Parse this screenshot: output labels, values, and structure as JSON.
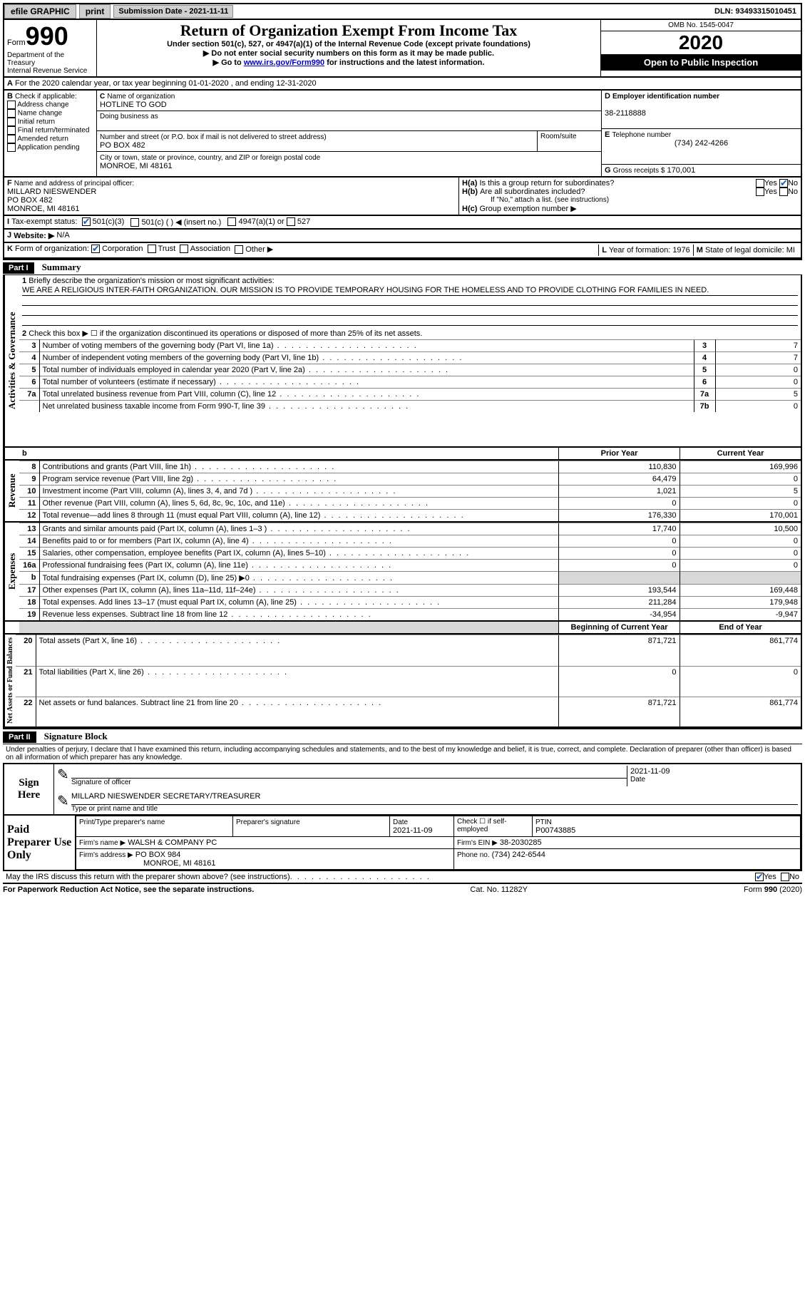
{
  "topbar": {
    "efile": "efile GRAPHIC",
    "print": "print",
    "submission_label": "Submission Date - 2021-11-11",
    "dln": "DLN: 93493315010451"
  },
  "header": {
    "form_prefix": "Form",
    "form_no": "990",
    "dept1": "Department of the Treasury",
    "dept2": "Internal Revenue Service",
    "title": "Return of Organization Exempt From Income Tax",
    "sub1": "Under section 501(c), 527, or 4947(a)(1) of the Internal Revenue Code (except private foundations)",
    "sub2": "▶ Do not enter social security numbers on this form as it may be made public.",
    "sub3_pre": "▶ Go to ",
    "sub3_link": "www.irs.gov/Form990",
    "sub3_post": " for instructions and the latest information.",
    "omb": "OMB No. 1545-0047",
    "year": "2020",
    "open": "Open to Public Inspection"
  },
  "A": {
    "text": "For the 2020 calendar year, or tax year beginning 01-01-2020    , and ending 12-31-2020"
  },
  "B": {
    "label": "Check if applicable:",
    "opts": [
      "Address change",
      "Name change",
      "Initial return",
      "Final return/terminated",
      "Amended return",
      "Application pending"
    ]
  },
  "C": {
    "name_lbl": "Name of organization",
    "name": "HOTLINE TO GOD",
    "dba_lbl": "Doing business as",
    "addr_lbl": "Number and street (or P.O. box if mail is not delivered to street address)",
    "room_lbl": "Room/suite",
    "addr": "PO BOX 482",
    "city_lbl": "City or town, state or province, country, and ZIP or foreign postal code",
    "city": "MONROE, MI  48161"
  },
  "D": {
    "lbl": "Employer identification number",
    "val": "38-2118888"
  },
  "E": {
    "lbl": "Telephone number",
    "val": "(734) 242-4266"
  },
  "G": {
    "lbl": "Gross receipts $",
    "val": "170,001"
  },
  "F": {
    "lbl": "Name and address of principal officer:",
    "name": "MILLARD NIESWENDER",
    "addr1": "PO BOX 482",
    "addr2": "MONROE, MI  48161"
  },
  "H": {
    "a": "Is this a group return for subordinates?",
    "b": "Are all subordinates included?",
    "b_note": "If \"No,\" attach a list. (see instructions)",
    "c": "Group exemption number ▶"
  },
  "I": {
    "lbl": "Tax-exempt status:",
    "opts": [
      "501(c)(3)",
      "501(c) (  ) ◀ (insert no.)",
      "4947(a)(1) or",
      "527"
    ]
  },
  "J": {
    "lbl": "Website: ▶",
    "val": "N/A"
  },
  "K": {
    "lbl": "Form of organization:",
    "opts": [
      "Corporation",
      "Trust",
      "Association",
      "Other ▶"
    ]
  },
  "L": {
    "lbl": "Year of formation:",
    "val": "1976"
  },
  "M": {
    "lbl": "State of legal domicile:",
    "val": "MI"
  },
  "part1": {
    "hdr": "Part I",
    "title": "Summary",
    "line1_lbl": "Briefly describe the organization's mission or most significant activities:",
    "mission": "WE ARE A RELIGIOUS INTER-FAITH ORGANIZATION. OUR MISSION IS TO PROVIDE TEMPORARY HOUSING FOR THE HOMELESS AND TO PROVIDE CLOTHING FOR FAMILIES IN NEED.",
    "line2": "Check this box ▶ ☐ if the organization discontinued its operations or disposed of more than 25% of its net assets.",
    "activities_tab": "Activities & Governance",
    "revenue_tab": "Revenue",
    "expenses_tab": "Expenses",
    "netassets_tab": "Net Assets or Fund Balances",
    "rows_ag": [
      {
        "n": "3",
        "t": "Number of voting members of the governing body (Part VI, line 1a)",
        "box": "3",
        "v": "7"
      },
      {
        "n": "4",
        "t": "Number of independent voting members of the governing body (Part VI, line 1b)",
        "box": "4",
        "v": "7"
      },
      {
        "n": "5",
        "t": "Total number of individuals employed in calendar year 2020 (Part V, line 2a)",
        "box": "5",
        "v": "0"
      },
      {
        "n": "6",
        "t": "Total number of volunteers (estimate if necessary)",
        "box": "6",
        "v": "0"
      },
      {
        "n": "7a",
        "t": "Total unrelated business revenue from Part VIII, column (C), line 12",
        "box": "7a",
        "v": "5"
      },
      {
        "n": "",
        "t": "Net unrelated business taxable income from Form 990-T, line 39",
        "box": "7b",
        "v": "0"
      }
    ],
    "py_hdr": "Prior Year",
    "cy_hdr": "Current Year",
    "rows_rev": [
      {
        "n": "8",
        "t": "Contributions and grants (Part VIII, line 1h)",
        "py": "110,830",
        "cy": "169,996"
      },
      {
        "n": "9",
        "t": "Program service revenue (Part VIII, line 2g)",
        "py": "64,479",
        "cy": "0"
      },
      {
        "n": "10",
        "t": "Investment income (Part VIII, column (A), lines 3, 4, and 7d )",
        "py": "1,021",
        "cy": "5"
      },
      {
        "n": "11",
        "t": "Other revenue (Part VIII, column (A), lines 5, 6d, 8c, 9c, 10c, and 11e)",
        "py": "0",
        "cy": "0"
      },
      {
        "n": "12",
        "t": "Total revenue—add lines 8 through 11 (must equal Part VIII, column (A), line 12)",
        "py": "176,330",
        "cy": "170,001"
      }
    ],
    "rows_exp": [
      {
        "n": "13",
        "t": "Grants and similar amounts paid (Part IX, column (A), lines 1–3 )",
        "py": "17,740",
        "cy": "10,500"
      },
      {
        "n": "14",
        "t": "Benefits paid to or for members (Part IX, column (A), line 4)",
        "py": "0",
        "cy": "0"
      },
      {
        "n": "15",
        "t": "Salaries, other compensation, employee benefits (Part IX, column (A), lines 5–10)",
        "py": "0",
        "cy": "0"
      },
      {
        "n": "16a",
        "t": "Professional fundraising fees (Part IX, column (A), line 11e)",
        "py": "0",
        "cy": "0"
      },
      {
        "n": "b",
        "t": "Total fundraising expenses (Part IX, column (D), line 25) ▶0",
        "py": "",
        "cy": "",
        "shade": true
      },
      {
        "n": "17",
        "t": "Other expenses (Part IX, column (A), lines 11a–11d, 11f–24e)",
        "py": "193,544",
        "cy": "169,448"
      },
      {
        "n": "18",
        "t": "Total expenses. Add lines 13–17 (must equal Part IX, column (A), line 25)",
        "py": "211,284",
        "cy": "179,948"
      },
      {
        "n": "19",
        "t": "Revenue less expenses. Subtract line 18 from line 12",
        "py": "-34,954",
        "cy": "-9,947"
      }
    ],
    "bocy_hdr": "Beginning of Current Year",
    "eoy_hdr": "End of Year",
    "rows_na": [
      {
        "n": "20",
        "t": "Total assets (Part X, line 16)",
        "py": "871,721",
        "cy": "861,774"
      },
      {
        "n": "21",
        "t": "Total liabilities (Part X, line 26)",
        "py": "0",
        "cy": "0"
      },
      {
        "n": "22",
        "t": "Net assets or fund balances. Subtract line 21 from line 20",
        "py": "871,721",
        "cy": "861,774"
      }
    ]
  },
  "part2": {
    "hdr": "Part II",
    "title": "Signature Block",
    "perjury": "Under penalties of perjury, I declare that I have examined this return, including accompanying schedules and statements, and to the best of my knowledge and belief, it is true, correct, and complete. Declaration of preparer (other than officer) is based on all information of which preparer has any knowledge.",
    "sign_here": "Sign Here",
    "sig_officer": "Signature of officer",
    "date_lbl": "Date",
    "sig_date": "2021-11-09",
    "officer_name": "MILLARD NIESWENDER  SECRETARY/TREASURER",
    "type_name": "Type or print name and title",
    "paid": "Paid Preparer Use Only",
    "prep_name_lbl": "Print/Type preparer's name",
    "prep_sig_lbl": "Preparer's signature",
    "prep_date": "2021-11-09",
    "self_emp": "Check ☐ if self-employed",
    "ptin_lbl": "PTIN",
    "ptin": "P00743885",
    "firm_name_lbl": "Firm's name    ▶",
    "firm_name": "WALSH & COMPANY PC",
    "firm_ein_lbl": "Firm's EIN ▶",
    "firm_ein": "38-2030285",
    "firm_addr_lbl": "Firm's address ▶",
    "firm_addr1": "PO BOX 984",
    "firm_addr2": "MONROE, MI  48161",
    "phone_lbl": "Phone no.",
    "phone": "(734) 242-6544",
    "discuss": "May the IRS discuss this return with the preparer shown above? (see instructions)"
  },
  "footer": {
    "pra": "For Paperwork Reduction Act Notice, see the separate instructions.",
    "cat": "Cat. No. 11282Y",
    "form": "Form 990 (2020)"
  },
  "labels": {
    "yes": "Yes",
    "no": "No",
    "b": "b",
    "B": "B",
    "A": "A",
    "C": "C",
    "D": "D",
    "E": "E",
    "F": "F",
    "G": "G",
    "Ha": "H(a)",
    "Hb": "H(b)",
    "Hc": "H(c)",
    "I": "I",
    "J": "J",
    "K": "K",
    "L": "L",
    "M": "M",
    "one": "1",
    "two": "2"
  }
}
